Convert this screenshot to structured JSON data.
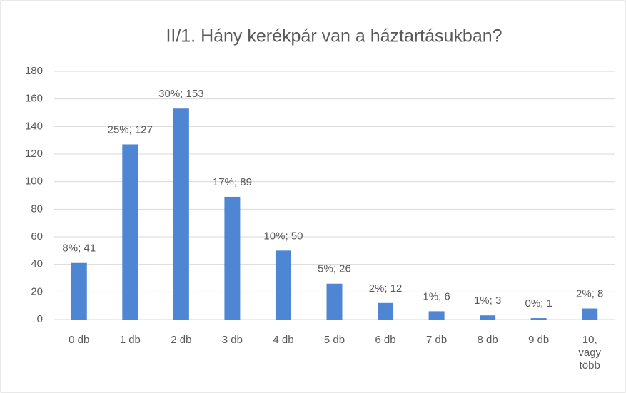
{
  "chart_data": {
    "type": "bar",
    "title": "II/1. Hány kerékpár van a háztartásukban?",
    "categories": [
      "0 db",
      "1 db",
      "2 db",
      "3 db",
      "4 db",
      "5 db",
      "6 db",
      "7 db",
      "8 db",
      "9 db",
      "10, vagy több"
    ],
    "values": [
      41,
      127,
      153,
      89,
      50,
      26,
      12,
      6,
      3,
      1,
      8
    ],
    "value_labels": [
      "8%; 41",
      "25%; 127",
      "30%; 153",
      "17%; 89",
      "10%; 50",
      "5%; 26",
      "2%; 12",
      "1%; 6",
      "1%; 3",
      "0%; 1",
      "2%; 8"
    ],
    "color": "#4f86d4",
    "ylim": [
      0,
      180
    ],
    "yticks": [
      0,
      20,
      40,
      60,
      80,
      100,
      120,
      140,
      160,
      180
    ],
    "grid": true
  }
}
